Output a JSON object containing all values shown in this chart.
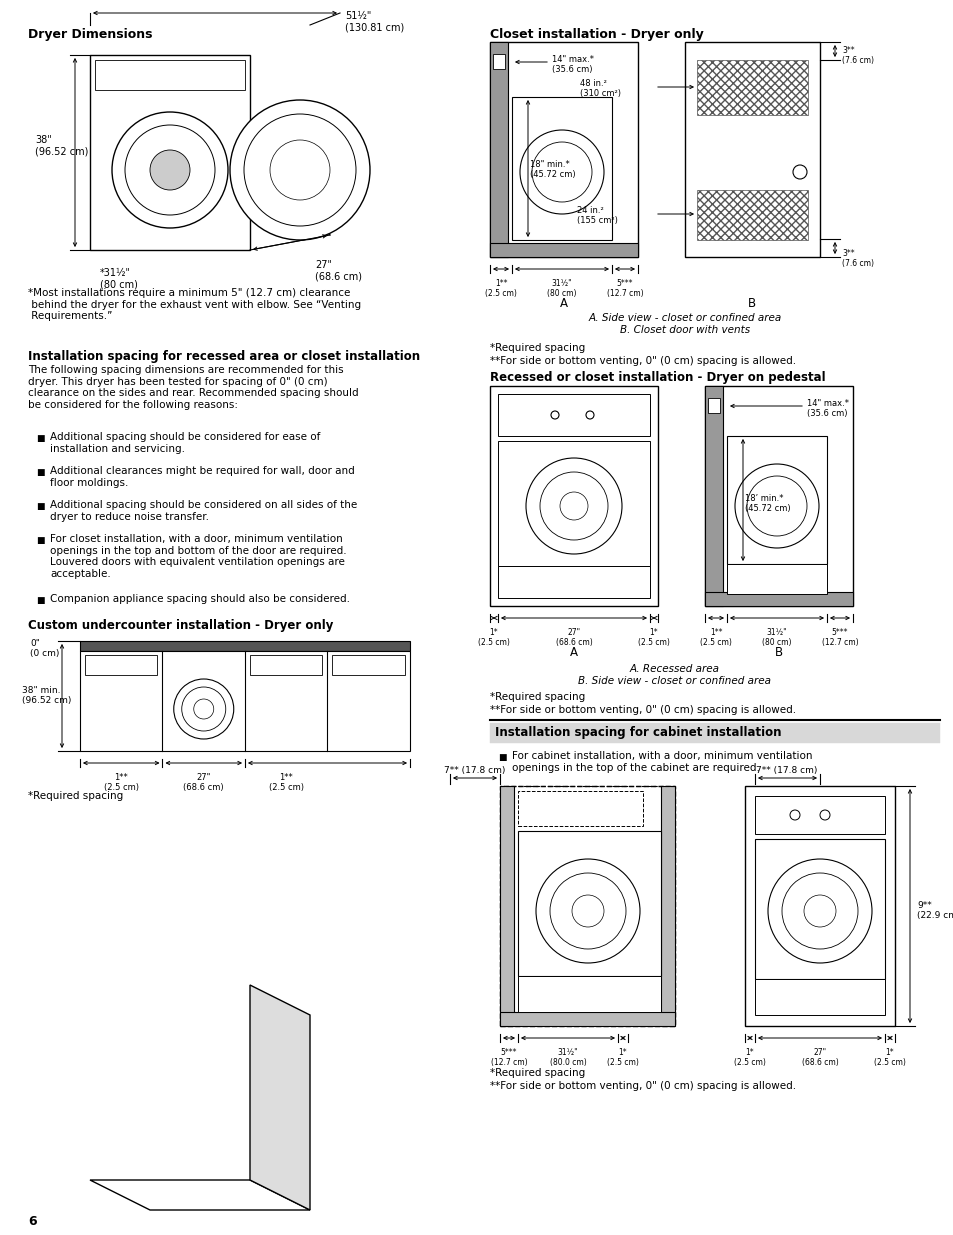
{
  "bg_color": "#ffffff",
  "page_number": "6",
  "title_dryer_dims": "Dryer Dimensions",
  "note_dryer": "*Most installations require a minimum 5\" (12.7 cm) clearance\n behind the dryer for the exhaust vent with elbow. See “Venting\n Requirements.”",
  "sec2_title": "Installation spacing for recessed area or closet installation",
  "sec2_body": "The following spacing dimensions are recommended for this\ndryer. This dryer has been tested for spacing of 0\" (0 cm)\nclearance on the sides and rear. Recommended spacing should\nbe considered for the following reasons:",
  "bullets": [
    "Additional spacing should be considered for ease of\ninstallation and servicing.",
    "Additional clearances might be required for wall, door and\nfloor moldings.",
    "Additional spacing should be considered on all sides of the\ndryer to reduce noise transfer.",
    "For closet installation, with a door, minimum ventilation\nopenings in the top and bottom of the door are required.\nLouvered doors with equivalent ventilation openings are\nacceptable.",
    "Companion appliance spacing should also be considered."
  ],
  "sec3_title": "Custom undercounter installation - Dryer only",
  "required_spacing": "*Required spacing",
  "rc_title1": "Closet installation - Dryer only",
  "rc_capA": "A",
  "rc_capB": "B",
  "rc_italic1": "A. Side view - closet or confined area\nB. Closet door with vents",
  "rc_req1": "*Required spacing",
  "rc_req2": "**For side or bottom venting, 0\" (0 cm) spacing is allowed.",
  "rc_title2": "Recessed or closet installation - Dryer on pedestal",
  "rc_capA2": "A",
  "rc_capB2": "B",
  "rc_italic2": "A. Recessed area\nB. Side view - closet or confined area",
  "rc_req3": "*Required spacing",
  "rc_req4": "**For side or bottom venting, 0\" (0 cm) spacing is allowed.",
  "rc_title3": "Installation spacing for cabinet installation",
  "rc_sec3_bullet": "For cabinet installation, with a door, minimum ventilation\nopenings in the top of the cabinet are required.",
  "rc_req5": "*Required spacing",
  "rc_req6": "**For side or bottom venting, 0\" (0 cm) spacing is allowed."
}
